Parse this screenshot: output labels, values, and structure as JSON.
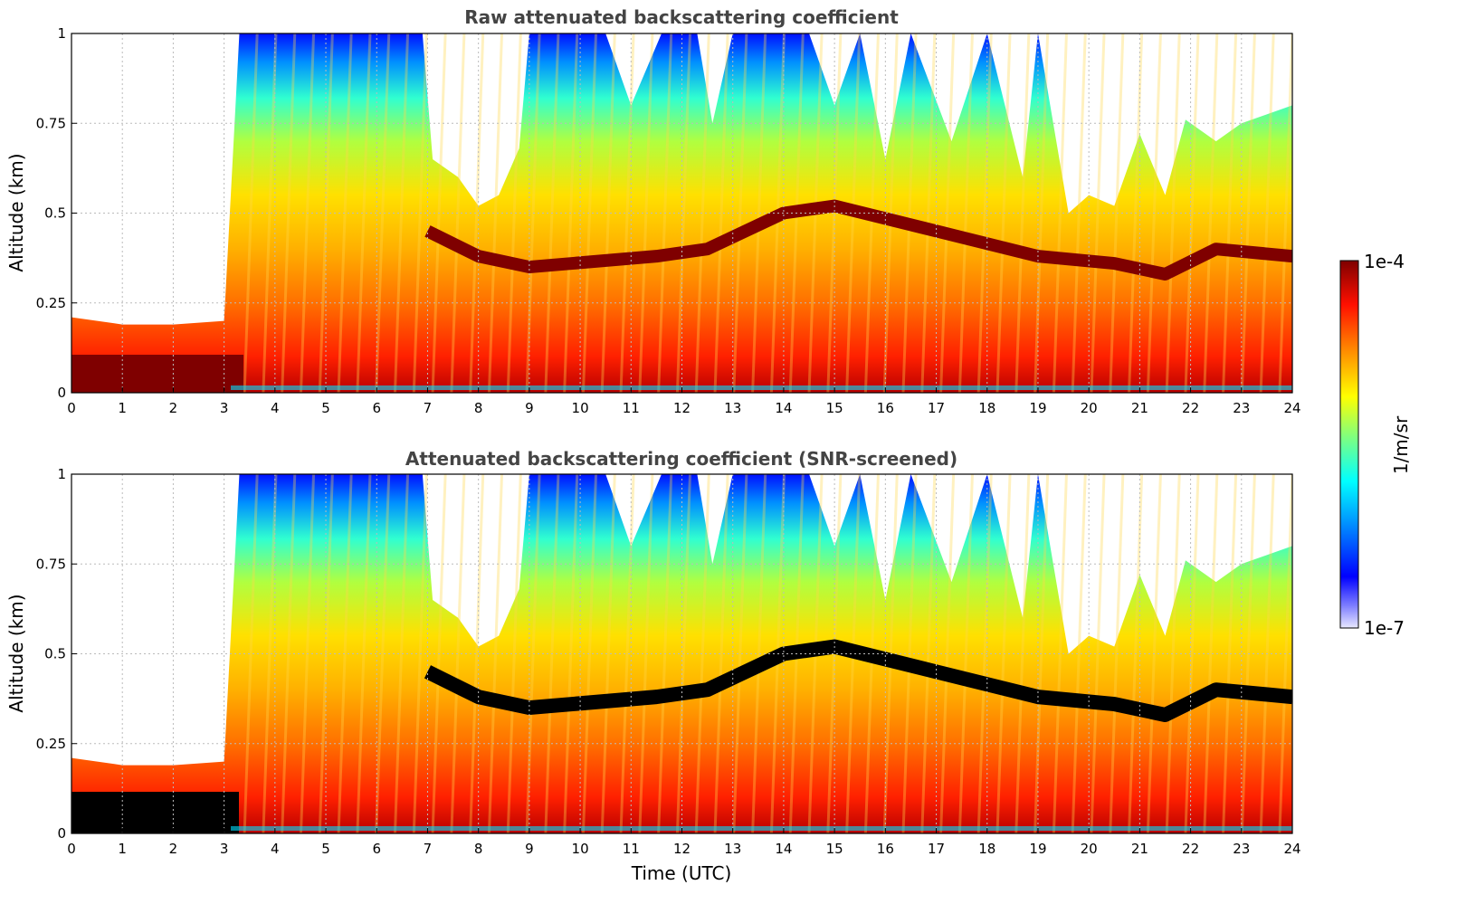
{
  "chart_data": [
    {
      "type": "heatmap",
      "title": "Raw attenuated backscattering coefficient",
      "xlabel": "",
      "ylabel": "Altitude (km)",
      "xlim": [
        0,
        24
      ],
      "ylim": [
        0,
        1
      ],
      "xticks": [
        "0",
        "1",
        "2",
        "3",
        "4",
        "5",
        "6",
        "7",
        "8",
        "9",
        "10",
        "11",
        "12",
        "13",
        "14",
        "15",
        "16",
        "17",
        "18",
        "19",
        "20",
        "21",
        "22",
        "23",
        "24"
      ],
      "yticks": [
        "0",
        "0.25",
        "0.5",
        "0.75",
        "1"
      ],
      "grid": true,
      "snr_screened": false
    },
    {
      "type": "heatmap",
      "title": "Attenuated backscattering coefficient (SNR-screened)",
      "xlabel": "Time (UTC)",
      "ylabel": "Altitude (km)",
      "xlim": [
        0,
        24
      ],
      "ylim": [
        0,
        1
      ],
      "xticks": [
        "0",
        "1",
        "2",
        "3",
        "4",
        "5",
        "6",
        "7",
        "8",
        "9",
        "10",
        "11",
        "12",
        "13",
        "14",
        "15",
        "16",
        "17",
        "18",
        "19",
        "20",
        "21",
        "22",
        "23",
        "24"
      ],
      "yticks": [
        "0",
        "0.25",
        "0.5",
        "0.75",
        "1"
      ],
      "grid": true,
      "snr_screened": true
    }
  ],
  "colorbar": {
    "label": "1/m/sr",
    "max_label": "1e-4",
    "min_label": "1e-7",
    "scale": "log",
    "colormap": "jet",
    "colors": [
      "#e8e8ff",
      "#0000ff",
      "#00ffff",
      "#7fff7f",
      "#ffff00",
      "#ff7f00",
      "#ff0000",
      "#7f0000"
    ]
  },
  "profile": {
    "cloud_top_km": [
      [
        0,
        0.21
      ],
      [
        1,
        0.19
      ],
      [
        2,
        0.19
      ],
      [
        3,
        0.2
      ],
      [
        3.3,
        1.0
      ],
      [
        6.9,
        1.0
      ],
      [
        7.1,
        0.65
      ],
      [
        7.6,
        0.6
      ],
      [
        8.0,
        0.52
      ],
      [
        8.4,
        0.55
      ],
      [
        8.8,
        0.68
      ],
      [
        9.0,
        1.0
      ],
      [
        10.5,
        1.0
      ],
      [
        11.0,
        0.8
      ],
      [
        11.6,
        1.0
      ],
      [
        12.3,
        1.0
      ],
      [
        12.6,
        0.75
      ],
      [
        13.0,
        1.0
      ],
      [
        14.5,
        1.0
      ],
      [
        15.0,
        0.8
      ],
      [
        15.5,
        1.0
      ],
      [
        16.0,
        0.65
      ],
      [
        16.5,
        1.0
      ],
      [
        17.3,
        0.7
      ],
      [
        18.0,
        1.0
      ],
      [
        18.7,
        0.6
      ],
      [
        19.0,
        1.0
      ],
      [
        19.6,
        0.5
      ],
      [
        20.0,
        0.55
      ],
      [
        20.5,
        0.52
      ],
      [
        21.0,
        0.72
      ],
      [
        21.5,
        0.55
      ],
      [
        21.9,
        0.76
      ],
      [
        22.5,
        0.7
      ],
      [
        23.0,
        0.75
      ],
      [
        24.0,
        0.8
      ]
    ],
    "dense_layer_km": [
      [
        0,
        0.12
      ],
      [
        3.0,
        0.12
      ],
      [
        7.0,
        0.45
      ],
      [
        8.0,
        0.38
      ],
      [
        9.0,
        0.35
      ],
      [
        11.5,
        0.38
      ],
      [
        12.5,
        0.4
      ],
      [
        14.0,
        0.5
      ],
      [
        15.0,
        0.52
      ],
      [
        17.0,
        0.45
      ],
      [
        19.0,
        0.38
      ],
      [
        20.5,
        0.36
      ],
      [
        21.5,
        0.33
      ],
      [
        22.5,
        0.4
      ],
      [
        24.0,
        0.38
      ]
    ]
  }
}
